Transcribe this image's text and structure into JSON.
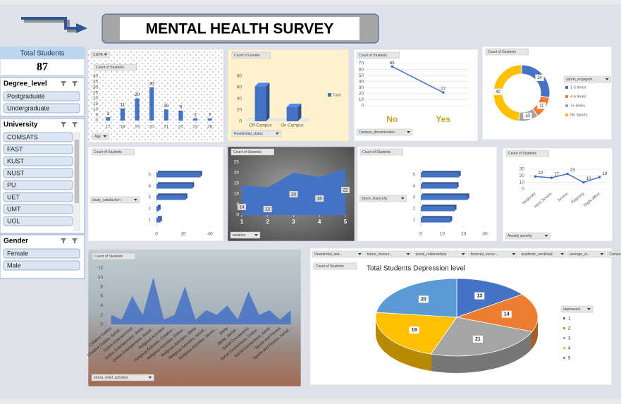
{
  "title": "MENTAL HEALTH SURVEY",
  "kpi": {
    "label": "Total Students",
    "value": 87
  },
  "slicers": [
    {
      "title": "Degree_level",
      "items": [
        "Postgraduate",
        "Undergraduate"
      ]
    },
    {
      "title": "University",
      "items": [
        "COMSATS",
        "FAST",
        "KUST",
        "NUST",
        "PU",
        "UET",
        "UMT",
        "UOL"
      ]
    },
    {
      "title": "Gender",
      "items": [
        "Female",
        "Male"
      ]
    }
  ],
  "chart_data": [
    {
      "type": "column",
      "filter_buttons": [
        "CGPA"
      ],
      "value_field": "Count of Students",
      "axis_field": "Age",
      "categories": [
        "17",
        "18",
        "19",
        "20",
        "21",
        "22",
        "23",
        "26"
      ],
      "values": [
        3,
        11,
        20,
        30,
        10,
        9,
        2,
        2
      ],
      "color": "#4472c4",
      "ylim": [
        0,
        40
      ],
      "yticks": [
        0,
        5,
        10,
        15,
        20,
        25,
        30,
        35,
        40
      ]
    },
    {
      "type": "column3d",
      "value_field": "Count of Gender",
      "axis_field": "Residential_status",
      "categories": [
        "Off-Campus",
        "On-Campus"
      ],
      "series": [
        {
          "name": "Total",
          "color": "#4472c4",
          "values": [
            62,
            25
          ]
        }
      ],
      "ylim": [
        0,
        80
      ],
      "yticks": [
        0,
        20,
        40,
        60,
        80
      ],
      "legend": "right"
    },
    {
      "type": "line",
      "value_field": "Count of Students",
      "axis_field": "Campus_discrimination",
      "categories": [
        "No",
        "Yes"
      ],
      "values": [
        65,
        22
      ],
      "color": "#4472c4",
      "ylim": [
        0,
        70
      ],
      "yticks": [
        0,
        10,
        20,
        30,
        40,
        50,
        60,
        70
      ],
      "grid": true
    },
    {
      "type": "donut",
      "value_field": "Count of Students",
      "legend_title": "sports_engagem...",
      "categories": [
        "1-3 times",
        "4-6 times",
        "7+ times",
        "No Sports"
      ],
      "values": [
        24,
        11,
        10,
        42
      ],
      "colors": [
        "#4472c4",
        "#ed7d31",
        "#a5a5a5",
        "#ffc000"
      ],
      "legend": "right"
    },
    {
      "type": "hbar",
      "value_field": "Count of Students",
      "axis_field": "study_satisfaction",
      "categories": [
        "1",
        "2",
        "3",
        "4",
        "5"
      ],
      "values": [
        3,
        2,
        22,
        27,
        33
      ],
      "color": "#4472c4",
      "xlim": [
        0,
        40
      ],
      "xticks": [
        0,
        20,
        40
      ]
    },
    {
      "type": "area",
      "value_field": "Count of Students",
      "axis_field": "isolation",
      "x": [
        1,
        2,
        3,
        4,
        5
      ],
      "values": [
        14,
        13,
        20,
        18,
        22
      ],
      "color": "#4472c4",
      "xlim": [
        1,
        5
      ],
      "xticks": [
        1,
        2,
        3,
        4,
        5
      ],
      "ylim": [
        0,
        25
      ],
      "yticks": [
        0,
        5,
        10,
        15,
        20,
        25
      ]
    },
    {
      "type": "hbar",
      "value_field": "Count of Students",
      "axis_field": "future_insecurity",
      "categories": [
        "1",
        "2",
        "3",
        "4",
        "5"
      ],
      "values": [
        14,
        16,
        22,
        17,
        18
      ],
      "color": "#4472c4",
      "xlim": [
        0,
        30
      ],
      "xticks": [
        0,
        10,
        20,
        30
      ]
    },
    {
      "type": "line",
      "value_field": "Count of Students",
      "axis_field": "Anxiety severity",
      "categories": [
        "Moderate",
        "Most Severe",
        "Severe",
        "Regining",
        "Slight affect"
      ],
      "values": [
        19,
        17,
        23,
        10,
        18
      ],
      "color": "#4472c4",
      "ylim": [
        0,
        30
      ],
      "yticks": [
        0,
        10,
        20,
        30
      ],
      "grid": true
    },
    {
      "type": "area",
      "value_field": "Count of Students",
      "axis_field": "stress_relief_activities",
      "categories": [
        "Creative Outlets",
        "Creative Outlets, Social...",
        "Online Entertainment",
        "Online Entertainment, Sleep",
        "Online Entertainment, Social...",
        "Religious Activities",
        "Religious Activities, Creative...",
        "Religious Activities, Online...",
        "Religious Activities, Sleep",
        "Religious Activities, Social...",
        "Religious Activities, Sports...",
        "Sleep",
        "Sleep, Social...",
        "Social Connections",
        "Social Connections, Online...",
        "Social Connections, Sleep",
        "Sports and Fitness",
        "Sports and Fitness, Social..."
      ],
      "values": [
        2,
        1,
        6,
        2,
        10,
        1,
        2,
        8,
        1,
        3,
        2,
        4,
        1,
        7,
        2,
        3,
        1,
        3
      ],
      "color": "#4472c4",
      "ylim": [
        0,
        12
      ],
      "yticks": [
        0,
        2,
        4,
        6,
        8,
        10,
        12
      ]
    },
    {
      "type": "pie",
      "title": "Total Students Depression level",
      "filter_buttons": [
        "Residential_stat...",
        "future_insecur...",
        "social_relationships",
        "financial_conce...",
        "academic_workload",
        "average_sl...",
        "Campus_discrimination"
      ],
      "value_field": "Count of Students",
      "legend_title": "depression",
      "categories": [
        "1",
        "2",
        "3",
        "4",
        "5"
      ],
      "values": [
        13,
        14,
        21,
        19,
        20
      ],
      "colors": [
        "#4472c4",
        "#ed7d31",
        "#a5a5a5",
        "#ffc000",
        "#5b9bd5"
      ],
      "legend": "right"
    }
  ]
}
